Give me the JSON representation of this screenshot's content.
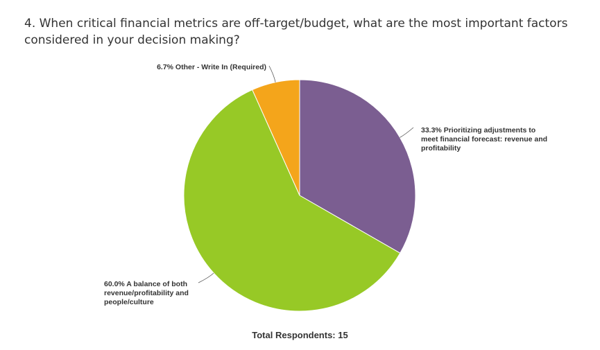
{
  "question": "4. When critical financial metrics are off-target/budget, what are the most important factors considered in your decision making?",
  "footer_text": "Total Respondents: 15",
  "chart_data": {
    "type": "pie",
    "title": "4. When critical financial metrics are off-target/budget, what are the most important factors considered in your decision making?",
    "slices": [
      {
        "percent": 33.3,
        "color": "#7b5e91",
        "label_lines": [
          "33.3% Prioritizing adjustments to",
          "meet financial forecast: revenue and",
          "profitability"
        ]
      },
      {
        "percent": 60.0,
        "color": "#97c926",
        "label_lines": [
          "60.0% A balance of both",
          "revenue/profitability and",
          "people/culture"
        ]
      },
      {
        "percent": 6.7,
        "color": "#f4a51b",
        "label_lines": [
          "6.7% Other - Write In (Required)"
        ]
      }
    ],
    "legend": "none",
    "total_respondents": 15
  }
}
